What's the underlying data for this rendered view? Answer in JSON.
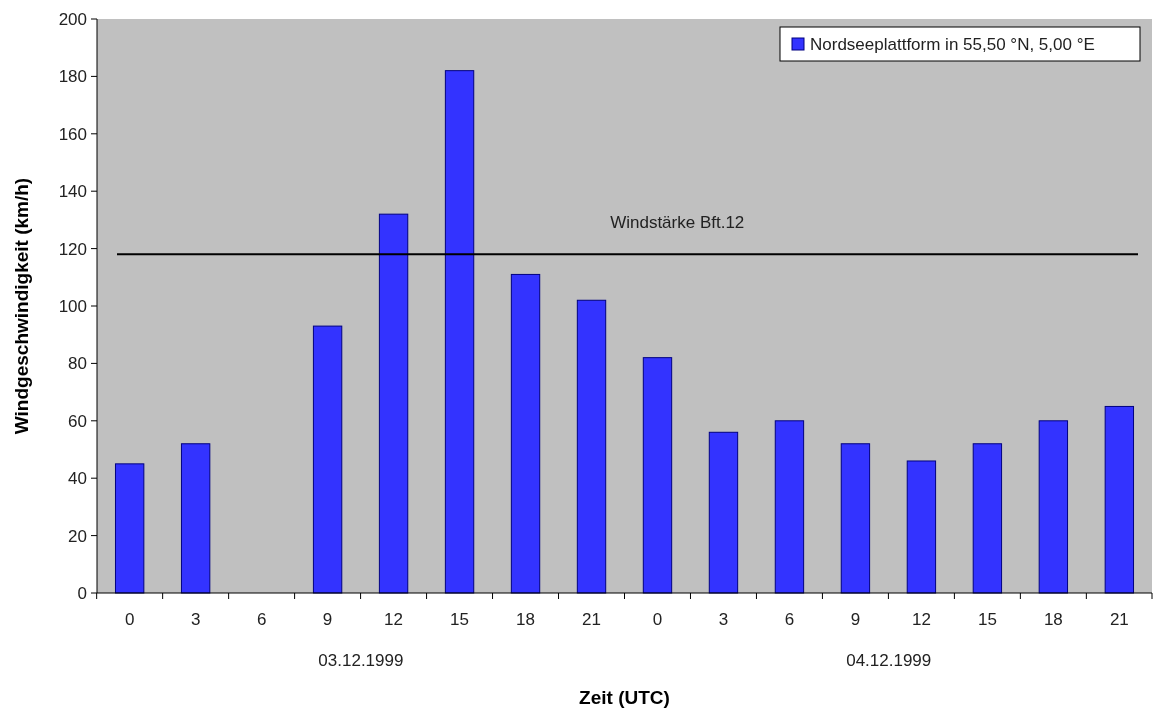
{
  "chart_data": {
    "type": "bar",
    "xlabel": "Zeit (UTC)",
    "ylabel": "Windgeschwindigkeit (km/h)",
    "categories": [
      "0",
      "3",
      "6",
      "9",
      "12",
      "15",
      "18",
      "21",
      "0",
      "3",
      "6",
      "9",
      "12",
      "15",
      "18",
      "21"
    ],
    "series": [
      {
        "name": "Nordseeplattform in 55,50 °N, 5,00 °E",
        "color": "#3333ff",
        "values": [
          45,
          52,
          null,
          93,
          132,
          182,
          111,
          102,
          82,
          56,
          60,
          52,
          46,
          52,
          60,
          65
        ]
      }
    ],
    "ylim": [
      0,
      200
    ],
    "yticks": [
      0,
      20,
      40,
      60,
      80,
      100,
      120,
      140,
      160,
      180,
      200
    ],
    "ref_lines": [
      {
        "axis": "y",
        "value": 118,
        "label": "Windstärke Bft.12",
        "color": "#000000"
      }
    ],
    "annotations": [
      "03.12.1999",
      "04.12.1999"
    ],
    "legend": "top right",
    "grid": false
  }
}
